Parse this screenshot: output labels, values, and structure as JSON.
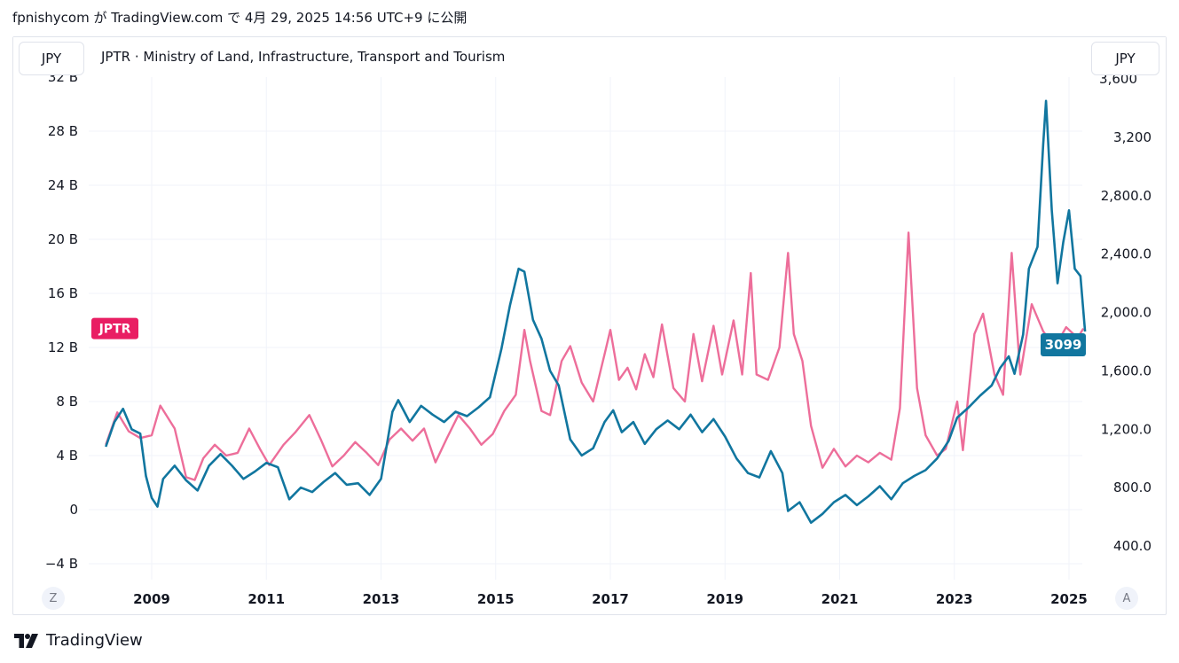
{
  "header": {
    "text": "fpnishycom が TradingView.com で 4月 29, 2025 14:56 UTC+9 に公開"
  },
  "toolbar": {
    "left_unit": "JPY",
    "right_unit": "JPY",
    "zoom_button": "Z",
    "auto_button": "A"
  },
  "series_title": "JPTR · Ministry of Land, Infrastructure, Transport and Tourism",
  "footer": {
    "brand": "TradingView"
  },
  "colors": {
    "jptr": "#ed6e9a",
    "price": "#11769f",
    "jptr_label_bg": "#e91e63",
    "price_label_bg": "#11769f",
    "grid": "#f0f3fa",
    "text": "#131722"
  },
  "chart_data": {
    "type": "line",
    "x_ticks": [
      "2009",
      "2011",
      "2013",
      "2015",
      "2017",
      "2019",
      "2021",
      "2023",
      "2025"
    ],
    "left_axis": {
      "ticks": [
        "28 B",
        "24 B",
        "20 B",
        "16 B",
        "12 B",
        "8 B",
        "4 B",
        "0",
        "−4 B"
      ],
      "tick_values": [
        28,
        24,
        20,
        16,
        12,
        8,
        4,
        0,
        -4
      ],
      "partial_top_label": "32 B",
      "range": [
        -5,
        32
      ]
    },
    "right_axis": {
      "ticks": [
        "3,200",
        "2,800.0",
        "2,400.0",
        "2,000.0",
        "1,600.0",
        "1,200.0",
        "800.0",
        "400.0"
      ],
      "tick_values": [
        3200,
        2800,
        2400,
        2000,
        1600,
        1200,
        800,
        400
      ],
      "partial_top_label": "3,600",
      "range": [
        200,
        3620
      ]
    },
    "series": [
      {
        "name": "JPTR",
        "axis": "left",
        "label": "JPTR",
        "points": [
          [
            2008.2,
            4.8
          ],
          [
            2008.4,
            7.2
          ],
          [
            2008.6,
            5.8
          ],
          [
            2008.8,
            5.3
          ],
          [
            2009.0,
            5.5
          ],
          [
            2009.15,
            7.7
          ],
          [
            2009.4,
            6.0
          ],
          [
            2009.6,
            2.4
          ],
          [
            2009.75,
            2.2
          ],
          [
            2009.9,
            3.8
          ],
          [
            2010.1,
            4.8
          ],
          [
            2010.3,
            4.0
          ],
          [
            2010.5,
            4.2
          ],
          [
            2010.7,
            6.0
          ],
          [
            2010.9,
            4.4
          ],
          [
            2011.05,
            3.3
          ],
          [
            2011.3,
            4.8
          ],
          [
            2011.5,
            5.7
          ],
          [
            2011.75,
            7.0
          ],
          [
            2011.95,
            5.2
          ],
          [
            2012.15,
            3.2
          ],
          [
            2012.35,
            4.0
          ],
          [
            2012.55,
            5.0
          ],
          [
            2012.75,
            4.2
          ],
          [
            2012.95,
            3.3
          ],
          [
            2013.15,
            5.2
          ],
          [
            2013.35,
            6.0
          ],
          [
            2013.55,
            5.1
          ],
          [
            2013.75,
            6.0
          ],
          [
            2013.95,
            3.5
          ],
          [
            2014.15,
            5.3
          ],
          [
            2014.35,
            7.0
          ],
          [
            2014.55,
            6.0
          ],
          [
            2014.75,
            4.8
          ],
          [
            2014.95,
            5.6
          ],
          [
            2015.15,
            7.3
          ],
          [
            2015.35,
            8.5
          ],
          [
            2015.5,
            13.3
          ],
          [
            2015.6,
            11.0
          ],
          [
            2015.8,
            7.3
          ],
          [
            2015.95,
            7.0
          ],
          [
            2016.15,
            11.0
          ],
          [
            2016.3,
            12.1
          ],
          [
            2016.5,
            9.4
          ],
          [
            2016.7,
            8.0
          ],
          [
            2016.9,
            11.5
          ],
          [
            2017.0,
            13.3
          ],
          [
            2017.15,
            9.6
          ],
          [
            2017.3,
            10.5
          ],
          [
            2017.45,
            8.9
          ],
          [
            2017.6,
            11.5
          ],
          [
            2017.75,
            9.8
          ],
          [
            2017.9,
            13.7
          ],
          [
            2018.1,
            9.0
          ],
          [
            2018.3,
            8.0
          ],
          [
            2018.45,
            13.0
          ],
          [
            2018.6,
            9.5
          ],
          [
            2018.8,
            13.6
          ],
          [
            2018.95,
            10.0
          ],
          [
            2019.15,
            14.0
          ],
          [
            2019.3,
            10.0
          ],
          [
            2019.45,
            17.5
          ],
          [
            2019.55,
            10.0
          ],
          [
            2019.75,
            9.6
          ],
          [
            2019.95,
            12.0
          ],
          [
            2020.1,
            19.0
          ],
          [
            2020.2,
            13.0
          ],
          [
            2020.35,
            11.0
          ],
          [
            2020.5,
            6.2
          ],
          [
            2020.7,
            3.1
          ],
          [
            2020.9,
            4.5
          ],
          [
            2021.1,
            3.2
          ],
          [
            2021.3,
            4.0
          ],
          [
            2021.5,
            3.5
          ],
          [
            2021.7,
            4.2
          ],
          [
            2021.9,
            3.7
          ],
          [
            2022.05,
            7.5
          ],
          [
            2022.2,
            20.5
          ],
          [
            2022.35,
            9.0
          ],
          [
            2022.5,
            5.5
          ],
          [
            2022.7,
            4.0
          ],
          [
            2022.85,
            4.5
          ],
          [
            2023.05,
            8.0
          ],
          [
            2023.15,
            4.4
          ],
          [
            2023.35,
            13.0
          ],
          [
            2023.5,
            14.5
          ],
          [
            2023.7,
            10.0
          ],
          [
            2023.85,
            8.5
          ],
          [
            2024.0,
            19.0
          ],
          [
            2024.15,
            10.0
          ],
          [
            2024.35,
            15.2
          ],
          [
            2024.55,
            13.2
          ],
          [
            2024.75,
            12.0
          ],
          [
            2024.95,
            13.5
          ],
          [
            2025.15,
            12.7
          ],
          [
            2025.25,
            13.4
          ]
        ]
      },
      {
        "name": "3099",
        "axis": "right",
        "label": "3099",
        "points": [
          [
            2008.2,
            1080
          ],
          [
            2008.35,
            1250
          ],
          [
            2008.5,
            1340
          ],
          [
            2008.65,
            1200
          ],
          [
            2008.8,
            1170
          ],
          [
            2008.9,
            880
          ],
          [
            2009.0,
            730
          ],
          [
            2009.1,
            670
          ],
          [
            2009.2,
            860
          ],
          [
            2009.4,
            950
          ],
          [
            2009.6,
            850
          ],
          [
            2009.8,
            780
          ],
          [
            2010.0,
            950
          ],
          [
            2010.2,
            1030
          ],
          [
            2010.4,
            950
          ],
          [
            2010.6,
            860
          ],
          [
            2010.8,
            910
          ],
          [
            2011.0,
            970
          ],
          [
            2011.2,
            940
          ],
          [
            2011.4,
            720
          ],
          [
            2011.6,
            800
          ],
          [
            2011.8,
            770
          ],
          [
            2012.0,
            840
          ],
          [
            2012.2,
            900
          ],
          [
            2012.4,
            820
          ],
          [
            2012.6,
            830
          ],
          [
            2012.8,
            750
          ],
          [
            2013.0,
            860
          ],
          [
            2013.2,
            1320
          ],
          [
            2013.3,
            1400
          ],
          [
            2013.5,
            1250
          ],
          [
            2013.7,
            1360
          ],
          [
            2013.9,
            1300
          ],
          [
            2014.1,
            1250
          ],
          [
            2014.3,
            1320
          ],
          [
            2014.5,
            1290
          ],
          [
            2014.7,
            1350
          ],
          [
            2014.9,
            1420
          ],
          [
            2015.1,
            1750
          ],
          [
            2015.25,
            2050
          ],
          [
            2015.4,
            2300
          ],
          [
            2015.5,
            2280
          ],
          [
            2015.65,
            1950
          ],
          [
            2015.8,
            1820
          ],
          [
            2015.95,
            1600
          ],
          [
            2016.1,
            1500
          ],
          [
            2016.3,
            1130
          ],
          [
            2016.5,
            1020
          ],
          [
            2016.7,
            1070
          ],
          [
            2016.9,
            1250
          ],
          [
            2017.05,
            1330
          ],
          [
            2017.2,
            1180
          ],
          [
            2017.4,
            1250
          ],
          [
            2017.6,
            1100
          ],
          [
            2017.8,
            1200
          ],
          [
            2018.0,
            1260
          ],
          [
            2018.2,
            1200
          ],
          [
            2018.4,
            1300
          ],
          [
            2018.6,
            1180
          ],
          [
            2018.8,
            1270
          ],
          [
            2019.0,
            1150
          ],
          [
            2019.2,
            1000
          ],
          [
            2019.4,
            900
          ],
          [
            2019.6,
            870
          ],
          [
            2019.8,
            1050
          ],
          [
            2020.0,
            900
          ],
          [
            2020.1,
            640
          ],
          [
            2020.3,
            700
          ],
          [
            2020.5,
            560
          ],
          [
            2020.7,
            620
          ],
          [
            2020.9,
            700
          ],
          [
            2021.1,
            750
          ],
          [
            2021.3,
            680
          ],
          [
            2021.5,
            740
          ],
          [
            2021.7,
            810
          ],
          [
            2021.9,
            720
          ],
          [
            2022.1,
            830
          ],
          [
            2022.3,
            880
          ],
          [
            2022.5,
            920
          ],
          [
            2022.7,
            1000
          ],
          [
            2022.9,
            1120
          ],
          [
            2023.05,
            1280
          ],
          [
            2023.25,
            1350
          ],
          [
            2023.45,
            1430
          ],
          [
            2023.65,
            1500
          ],
          [
            2023.8,
            1620
          ],
          [
            2023.95,
            1700
          ],
          [
            2024.05,
            1580
          ],
          [
            2024.2,
            1850
          ],
          [
            2024.3,
            2300
          ],
          [
            2024.45,
            2450
          ],
          [
            2024.55,
            3150
          ],
          [
            2024.6,
            3450
          ],
          [
            2024.7,
            2700
          ],
          [
            2024.8,
            2200
          ],
          [
            2024.9,
            2480
          ],
          [
            2025.0,
            2700
          ],
          [
            2025.1,
            2300
          ],
          [
            2025.2,
            2250
          ],
          [
            2025.28,
            1870
          ]
        ]
      }
    ]
  }
}
